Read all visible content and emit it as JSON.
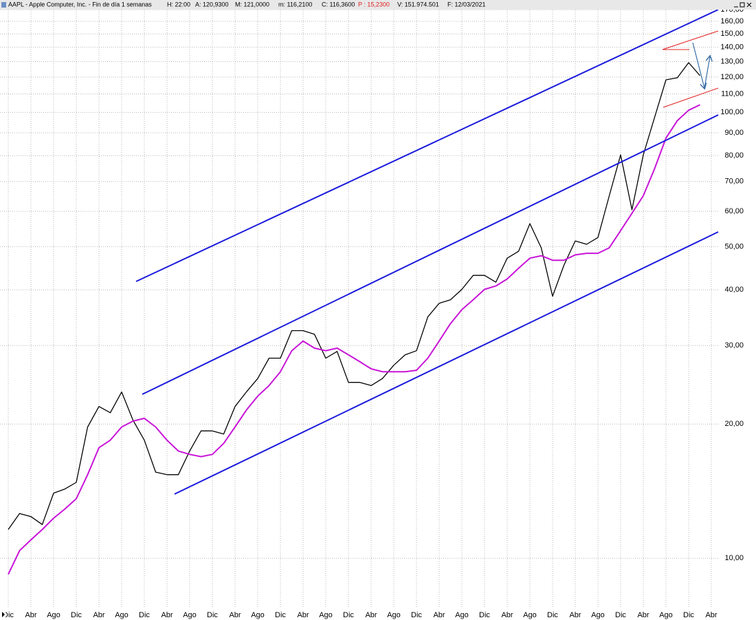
{
  "chart_data": {
    "type": "line",
    "title": "AAPL - Apple Computer, Inc. - Fin de día 1 semanas",
    "header_items": [
      "H: 22:00",
      "A: 120,9300",
      "M: 121,0000",
      "m: 116,2100",
      "C: 116,3600",
      "P : 15,2300",
      "V: 151.974.501",
      "F: 12/03/2021"
    ],
    "categories": [
      "Dic",
      null,
      "Abr",
      null,
      "Ago",
      null,
      "Dic",
      null,
      "Abr",
      null,
      "Ago",
      null,
      "Dic",
      null,
      "Abr",
      null,
      "Ago",
      null,
      "Dic",
      null,
      "Abr",
      null,
      "Ago",
      null,
      "Dic",
      null,
      "Abr",
      null,
      "Ago",
      null,
      "Dic",
      null,
      "Abr",
      null,
      "Ago",
      null,
      "Dic",
      null,
      "Abr",
      null,
      "Ago",
      null,
      "Dic",
      null,
      "Abr",
      null,
      "Ago",
      null,
      "Dic",
      null,
      "Abr",
      null,
      "Ago",
      null,
      "Dic",
      null,
      "Abr",
      null,
      "Ago",
      null,
      "Dic",
      null,
      "Abr"
    ],
    "series": [
      {
        "color": "#000000",
        "values": [
          11.6,
          12.6,
          12.4,
          11.9,
          14.0,
          14.3,
          14.8,
          19.7,
          21.9,
          21.2,
          23.6,
          20.4,
          18.4,
          15.6,
          15.4,
          15.4,
          17.4,
          19.3,
          19.3,
          19.0,
          21.9,
          23.6,
          25.3,
          28.1,
          28.1,
          32.4,
          32.4,
          31.8,
          28.1,
          29.1,
          24.8,
          24.8,
          24.4,
          25.3,
          27.1,
          28.6,
          29.2,
          34.8,
          37.3,
          38.0,
          40.1,
          43.1,
          43.1,
          41.6,
          47.1,
          48.8,
          56.3,
          49.7,
          38.7,
          45.4,
          51.5,
          50.6,
          52.4,
          65.0,
          80.3,
          60.5,
          80.3,
          97.5,
          118.3,
          119.6,
          129.3,
          120.9,
          null
        ]
      },
      {
        "color": "#c814d8",
        "values": [
          9.2,
          10.4,
          11.0,
          11.6,
          12.3,
          12.9,
          13.6,
          15.4,
          17.7,
          18.4,
          19.7,
          20.3,
          20.6,
          19.7,
          18.4,
          17.4,
          17.1,
          16.9,
          17.1,
          18.1,
          19.7,
          21.5,
          23.1,
          24.4,
          26.2,
          29.2,
          30.7,
          29.6,
          29.2,
          29.6,
          28.6,
          27.6,
          26.6,
          26.2,
          26.2,
          26.2,
          26.4,
          28.1,
          30.7,
          33.6,
          36.1,
          38.0,
          40.1,
          40.8,
          42.3,
          44.7,
          47.1,
          47.7,
          46.6,
          46.6,
          47.9,
          48.3,
          48.3,
          49.7,
          54.3,
          59.4,
          65.0,
          74.8,
          87.6,
          95.8,
          101.1,
          104.0,
          null
        ]
      }
    ],
    "log_scale": true,
    "grid": true,
    "ylim": [
      7.75,
      170
    ],
    "yticks": [
      {
        "value": 10,
        "label": "10,00"
      },
      {
        "value": 20,
        "label": "20,00"
      },
      {
        "value": 30,
        "label": "30,00"
      },
      {
        "value": 40,
        "label": "40,00"
      },
      {
        "value": 50,
        "label": "50,00"
      },
      {
        "value": 60,
        "label": "60,00"
      },
      {
        "value": 70,
        "label": "70,00"
      },
      {
        "value": 80,
        "label": "80,00"
      },
      {
        "value": 90,
        "label": "90,00"
      },
      {
        "value": 100,
        "label": "100,00"
      },
      {
        "value": 110,
        "label": "110,00"
      },
      {
        "value": 120,
        "label": "120,00"
      },
      {
        "value": 130,
        "label": "130,00"
      },
      {
        "value": 140,
        "label": "140,00"
      },
      {
        "value": 150,
        "label": "150,00"
      },
      {
        "value": 160,
        "label": "160,00"
      },
      {
        "value": 170,
        "label": "170,00"
      }
    ]
  }
}
